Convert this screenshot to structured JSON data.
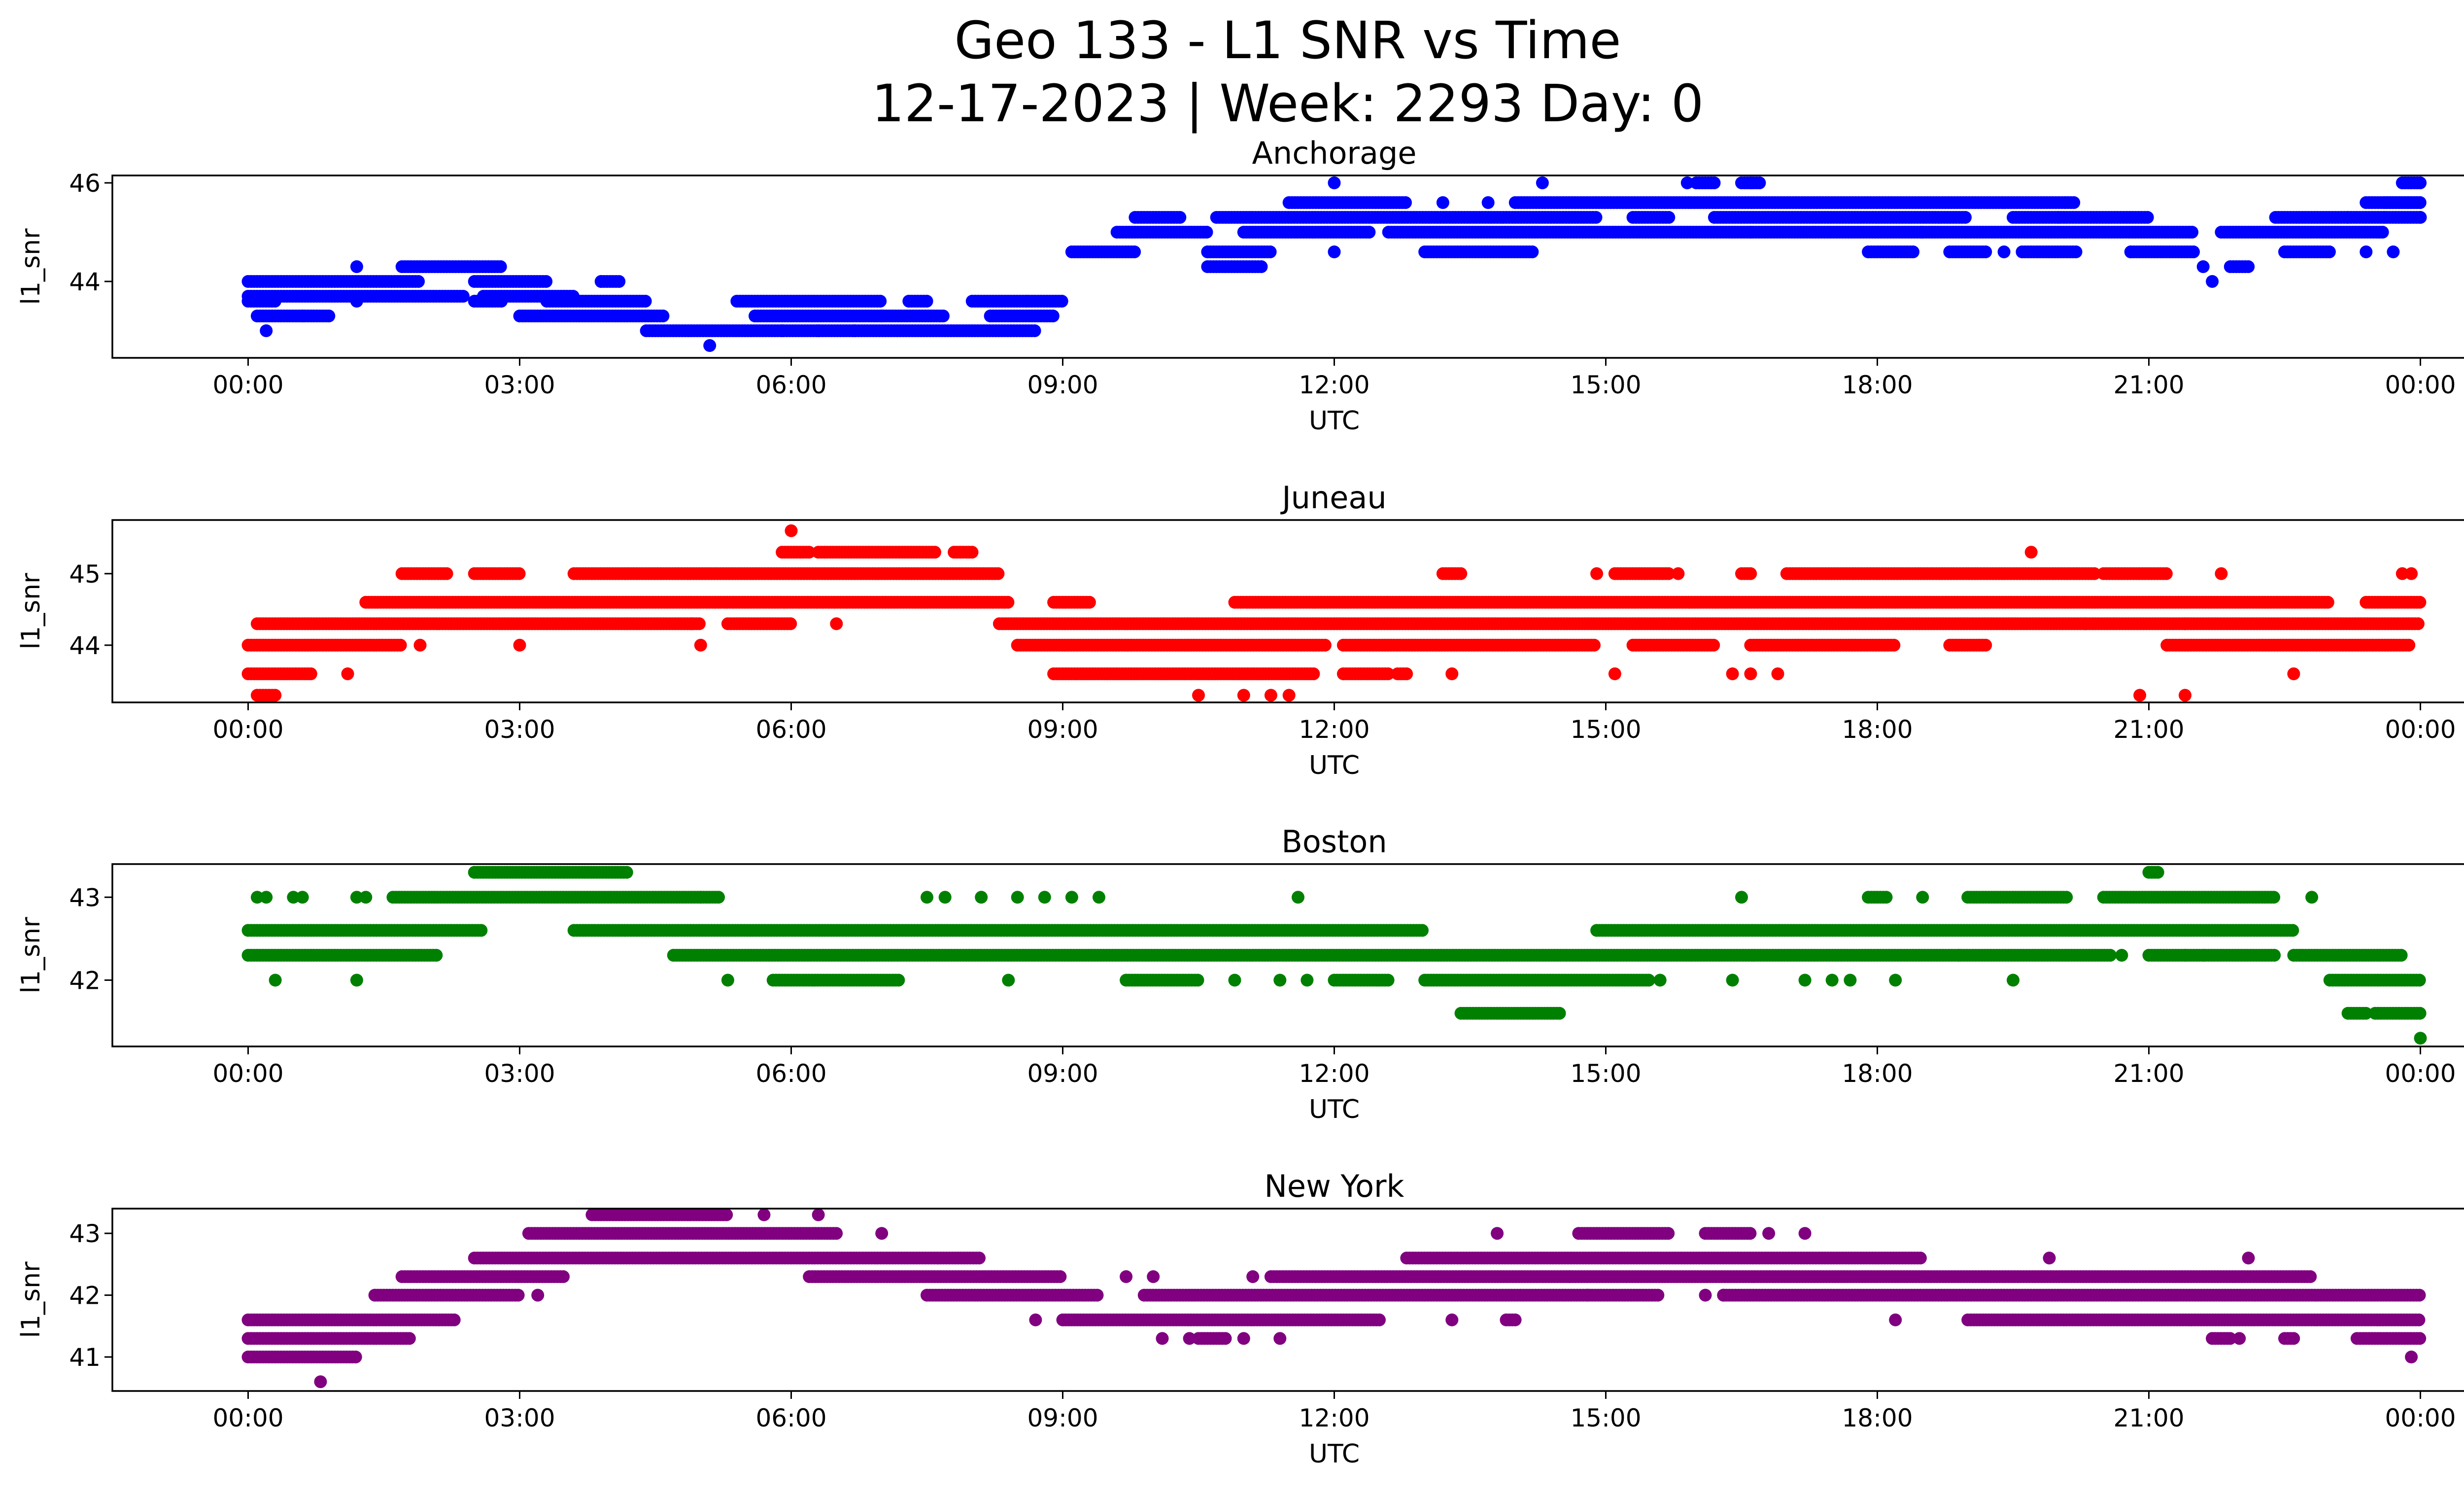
{
  "title_line1": "Geo 133 - L1 SNR vs Time",
  "title_line2": "12-17-2023 | Week: 2293 Day: 0",
  "chart_data": [
    {
      "type": "scatter",
      "title": "Anchorage",
      "xlabel": "UTC",
      "ylabel": "l1_snr",
      "color": "#0000ff",
      "xlim_hours": [
        -1.5,
        25.5
      ],
      "ylim": [
        42.45,
        46.15
      ],
      "yticks": [
        44,
        46
      ],
      "xticks": [
        "00:00",
        "03:00",
        "06:00",
        "09:00",
        "12:00",
        "15:00",
        "18:00",
        "21:00",
        "00:00"
      ],
      "series": [
        {
          "y": 44.0,
          "ranges": [
            [
              0,
              1.9
            ],
            [
              2.5,
              3.3
            ],
            [
              3.9,
              4.1
            ]
          ]
        },
        {
          "y": 43.7,
          "ranges": [
            [
              0,
              2.4
            ],
            [
              2.6,
              3.6
            ]
          ]
        },
        {
          "y": 43.3,
          "ranges": [
            [
              0.1,
              0.9
            ],
            [
              3.0,
              4.6
            ],
            [
              5.6,
              7.7
            ],
            [
              8.2,
              8.9
            ]
          ]
        },
        {
          "y": 43.6,
          "ranges": [
            [
              0,
              0.3
            ],
            [
              2.5,
              2.8
            ],
            [
              3.3,
              4.4
            ],
            [
              5.4,
              7.0
            ],
            [
              7.3,
              7.5
            ],
            [
              8.0,
              9.0
            ]
          ]
        },
        {
          "y": 43.0,
          "ranges": [
            [
              4.4,
              8.7
            ]
          ]
        },
        {
          "y": 44.3,
          "ranges": [
            [
              1.7,
              2.8
            ]
          ]
        },
        {
          "y": 44.6,
          "ranges": [
            [
              9.1,
              9.8
            ]
          ]
        },
        {
          "y": 45.0,
          "ranges": [
            [
              9.6,
              10.6
            ],
            [
              11.0,
              12.4
            ],
            [
              12.6,
              21.5
            ],
            [
              21.8,
              23.6
            ]
          ]
        },
        {
          "y": 45.3,
          "ranges": [
            [
              9.8,
              10.3
            ],
            [
              10.7,
              14.9
            ],
            [
              15.3,
              15.7
            ],
            [
              16.2,
              19.0
            ],
            [
              19.5,
              21.0
            ],
            [
              22.4,
              23.2
            ]
          ]
        },
        {
          "y": 45.6,
          "ranges": [
            [
              11.5,
              12.8
            ],
            [
              14.0,
              20.2
            ],
            [
              23.4,
              24.0
            ]
          ]
        },
        {
          "y": 44.6,
          "ranges": [
            [
              10.6,
              11.3
            ],
            [
              13.0,
              14.2
            ],
            [
              17.9,
              18.4
            ],
            [
              18.8,
              19.2
            ],
            [
              19.6,
              20.2
            ],
            [
              20.8,
              21.5
            ],
            [
              22.5,
              23.0
            ]
          ]
        },
        {
          "y": 44.3,
          "ranges": [
            [
              10.6,
              11.2
            ],
            [
              21.9,
              22.1
            ]
          ]
        },
        {
          "y": 46.0,
          "ranges": [
            [
              16.0,
              16.2
            ],
            [
              16.5,
              16.7
            ],
            [
              23.8,
              24.0
            ]
          ]
        },
        {
          "y": 45.6,
          "ranges": [
            [
              23.6,
              24.0
            ]
          ]
        },
        {
          "y": 45.3,
          "ranges": [
            [
              23.2,
              24.0
            ]
          ]
        }
      ],
      "points": [
        [
          5.1,
          42.7
        ],
        [
          0.2,
          43.0
        ],
        [
          12.0,
          46.0
        ],
        [
          12.0,
          44.6
        ],
        [
          15.9,
          46.0
        ],
        [
          16.6,
          46.0
        ],
        [
          16.6,
          45.0
        ],
        [
          20.0,
          45.3
        ],
        [
          20.8,
          44.6
        ],
        [
          21.7,
          44.0
        ],
        [
          21.6,
          44.3
        ],
        [
          24.0,
          45.3
        ],
        [
          23.6,
          45.3
        ],
        [
          23.4,
          44.6
        ],
        [
          23.7,
          44.6
        ],
        [
          18.5,
          45.0
        ],
        [
          19.4,
          44.6
        ],
        [
          13.2,
          45.6
        ],
        [
          13.7,
          45.6
        ],
        [
          14.3,
          46.0
        ],
        [
          1.2,
          44.3
        ],
        [
          1.2,
          43.6
        ],
        [
          3.9,
          44.0
        ],
        [
          0.6,
          43.3
        ],
        [
          6.3,
          43.0
        ],
        [
          6.7,
          43.0
        ],
        [
          5.9,
          43.0
        ],
        [
          7.0,
          43.3
        ],
        [
          8.6,
          43.6
        ]
      ]
    },
    {
      "type": "scatter",
      "title": "Juneau",
      "xlabel": "UTC",
      "ylabel": "l1_snr",
      "color": "#ff0000",
      "xlim_hours": [
        -1.5,
        25.5
      ],
      "ylim": [
        43.2,
        45.75
      ],
      "yticks": [
        44,
        45
      ],
      "xticks": [
        "00:00",
        "03:00",
        "06:00",
        "09:00",
        "12:00",
        "15:00",
        "18:00",
        "21:00",
        "00:00"
      ],
      "series": [
        {
          "y": 44.0,
          "ranges": [
            [
              0,
              1.7
            ],
            [
              8.5,
              11.9
            ],
            [
              12.1,
              14.9
            ],
            [
              15.3,
              16.2
            ],
            [
              16.6,
              18.2
            ],
            [
              18.8,
              19.2
            ],
            [
              21.2,
              23.9
            ]
          ]
        },
        {
          "y": 44.3,
          "ranges": [
            [
              0.1,
              5.0
            ],
            [
              5.3,
              6.0
            ],
            [
              8.3,
              24.0
            ]
          ]
        },
        {
          "y": 44.6,
          "ranges": [
            [
              1.3,
              8.4
            ],
            [
              8.9,
              9.3
            ],
            [
              10.9,
              23.0
            ],
            [
              23.4,
              24.0
            ]
          ]
        },
        {
          "y": 45.0,
          "ranges": [
            [
              1.7,
              2.2
            ],
            [
              2.5,
              3.0
            ],
            [
              3.6,
              8.3
            ],
            [
              13.2,
              13.4
            ],
            [
              15.1,
              15.7
            ],
            [
              16.5,
              16.6
            ],
            [
              17.0,
              20.4
            ],
            [
              20.5,
              21.2
            ]
          ]
        },
        {
          "y": 45.3,
          "ranges": [
            [
              5.9,
              6.2
            ],
            [
              6.3,
              7.6
            ],
            [
              7.8,
              8.0
            ]
          ]
        },
        {
          "y": 43.6,
          "ranges": [
            [
              0,
              0.7
            ],
            [
              8.9,
              11.8
            ],
            [
              12.1,
              12.6
            ],
            [
              12.7,
              12.8
            ]
          ]
        },
        {
          "y": 43.3,
          "ranges": [
            [
              0.1,
              0.3
            ]
          ]
        }
      ],
      "points": [
        [
          6.0,
          45.6
        ],
        [
          1.1,
          43.6
        ],
        [
          1.9,
          44.0
        ],
        [
          3.0,
          44.0
        ],
        [
          5.0,
          44.0
        ],
        [
          4.9,
          44.3
        ],
        [
          6.5,
          44.3
        ],
        [
          10.5,
          43.3
        ],
        [
          11.0,
          43.3
        ],
        [
          11.3,
          43.3
        ],
        [
          11.5,
          43.3
        ],
        [
          13.3,
          43.6
        ],
        [
          15.1,
          43.6
        ],
        [
          16.4,
          43.6
        ],
        [
          16.6,
          43.6
        ],
        [
          16.9,
          43.6
        ],
        [
          19.7,
          45.3
        ],
        [
          20.9,
          43.3
        ],
        [
          21.4,
          43.3
        ],
        [
          22.6,
          43.6
        ],
        [
          23.8,
          45.0
        ],
        [
          23.9,
          45.0
        ],
        [
          15.8,
          45.0
        ],
        [
          14.9,
          45.0
        ],
        [
          21.8,
          45.0
        ],
        [
          21.4,
          44.3
        ],
        [
          20.3,
          44.3
        ]
      ]
    },
    {
      "type": "scatter",
      "title": "Boston",
      "xlabel": "UTC",
      "ylabel": "l1_snr",
      "color": "#008000",
      "xlim_hours": [
        -1.5,
        25.5
      ],
      "ylim": [
        41.2,
        43.4
      ],
      "yticks": [
        42,
        43
      ],
      "xticks": [
        "00:00",
        "03:00",
        "06:00",
        "09:00",
        "12:00",
        "15:00",
        "18:00",
        "21:00",
        "00:00"
      ],
      "series": [
        {
          "y": 42.6,
          "ranges": [
            [
              0,
              2.6
            ],
            [
              3.6,
              13.0
            ],
            [
              14.9,
              22.6
            ]
          ]
        },
        {
          "y": 42.3,
          "ranges": [
            [
              0,
              2.1
            ],
            [
              4.7,
              20.6
            ],
            [
              21.0,
              22.4
            ],
            [
              22.6,
              23.8
            ]
          ]
        },
        {
          "y": 43.0,
          "ranges": [
            [
              1.6,
              5.2
            ],
            [
              17.9,
              18.1
            ],
            [
              19.0,
              20.1
            ],
            [
              20.5,
              22.4
            ]
          ]
        },
        {
          "y": 43.3,
          "ranges": [
            [
              2.5,
              4.2
            ],
            [
              21.0,
              21.1
            ]
          ]
        },
        {
          "y": 42.0,
          "ranges": [
            [
              5.8,
              7.2
            ],
            [
              9.7,
              10.5
            ],
            [
              12.0,
              12.6
            ],
            [
              13.0,
              15.5
            ],
            [
              23.0,
              24.0
            ]
          ]
        },
        {
          "y": 41.6,
          "ranges": [
            [
              13.4,
              14.5
            ],
            [
              23.2,
              23.4
            ],
            [
              23.5,
              24.0
            ]
          ]
        }
      ],
      "points": [
        [
          0.1,
          43.0
        ],
        [
          0.2,
          43.0
        ],
        [
          0.5,
          43.0
        ],
        [
          0.6,
          43.0
        ],
        [
          1.2,
          43.0
        ],
        [
          1.3,
          43.0
        ],
        [
          0.3,
          42.0
        ],
        [
          1.2,
          42.0
        ],
        [
          5.3,
          42.0
        ],
        [
          5.0,
          43.0
        ],
        [
          7.5,
          43.0
        ],
        [
          7.7,
          43.0
        ],
        [
          8.1,
          43.0
        ],
        [
          8.5,
          43.0
        ],
        [
          8.8,
          43.0
        ],
        [
          9.1,
          43.0
        ],
        [
          9.4,
          43.0
        ],
        [
          11.6,
          43.0
        ],
        [
          10.9,
          42.0
        ],
        [
          11.4,
          42.0
        ],
        [
          11.7,
          42.0
        ],
        [
          8.4,
          42.0
        ],
        [
          16.5,
          43.0
        ],
        [
          18.5,
          43.0
        ],
        [
          16.4,
          42.0
        ],
        [
          17.2,
          42.0
        ],
        [
          17.5,
          42.0
        ],
        [
          17.7,
          42.0
        ],
        [
          18.2,
          42.0
        ],
        [
          19.5,
          42.0
        ],
        [
          20.7,
          42.3
        ],
        [
          21.4,
          42.3
        ],
        [
          21.6,
          42.3
        ],
        [
          22.8,
          43.0
        ],
        [
          24.0,
          41.3
        ],
        [
          18.9,
          42.3
        ],
        [
          15.6,
          42.0
        ]
      ]
    },
    {
      "type": "scatter",
      "title": "New York",
      "xlabel": "UTC",
      "ylabel": "l1_snr",
      "color": "#800080",
      "xlim_hours": [
        -1.5,
        25.5
      ],
      "ylim": [
        40.45,
        43.4
      ],
      "yticks": [
        41,
        42,
        43
      ],
      "xticks": [
        "00:00",
        "03:00",
        "06:00",
        "09:00",
        "12:00",
        "15:00",
        "18:00",
        "21:00",
        "00:00"
      ],
      "series": [
        {
          "y": 41.0,
          "ranges": [
            [
              0,
              1.2
            ]
          ]
        },
        {
          "y": 41.3,
          "ranges": [
            [
              0,
              1.8
            ],
            [
              10.5,
              10.8
            ],
            [
              21.7,
              21.9
            ],
            [
              22.5,
              22.6
            ],
            [
              23.3,
              24.0
            ]
          ]
        },
        {
          "y": 41.6,
          "ranges": [
            [
              0,
              2.3
            ],
            [
              9.0,
              12.5
            ],
            [
              13.9,
              14.0
            ],
            [
              19.0,
              24.0
            ]
          ]
        },
        {
          "y": 42.0,
          "ranges": [
            [
              1.4,
              3.0
            ],
            [
              7.5,
              9.4
            ],
            [
              9.9,
              15.6
            ],
            [
              16.3,
              24.0
            ]
          ]
        },
        {
          "y": 42.3,
          "ranges": [
            [
              1.7,
              3.5
            ],
            [
              6.2,
              9.0
            ],
            [
              11.3,
              22.8
            ]
          ]
        },
        {
          "y": 42.6,
          "ranges": [
            [
              2.5,
              8.1
            ],
            [
              12.8,
              18.5
            ]
          ]
        },
        {
          "y": 43.0,
          "ranges": [
            [
              3.1,
              6.5
            ],
            [
              14.7,
              15.7
            ],
            [
              16.1,
              16.6
            ]
          ]
        },
        {
          "y": 43.3,
          "ranges": [
            [
              3.8,
              5.3
            ]
          ]
        }
      ],
      "points": [
        [
          0.8,
          40.6
        ],
        [
          3.2,
          42.0
        ],
        [
          5.7,
          43.3
        ],
        [
          6.3,
          43.3
        ],
        [
          7.0,
          43.0
        ],
        [
          8.7,
          41.6
        ],
        [
          9.7,
          42.3
        ],
        [
          10.0,
          42.3
        ],
        [
          10.1,
          41.3
        ],
        [
          10.4,
          41.3
        ],
        [
          11.0,
          41.3
        ],
        [
          11.4,
          41.3
        ],
        [
          11.1,
          42.3
        ],
        [
          13.3,
          41.6
        ],
        [
          13.8,
          43.0
        ],
        [
          14.6,
          42.3
        ],
        [
          14.8,
          42.0
        ],
        [
          16.1,
          42.0
        ],
        [
          16.3,
          42.0
        ],
        [
          16.8,
          43.0
        ],
        [
          17.2,
          43.0
        ],
        [
          18.2,
          41.6
        ],
        [
          19.9,
          42.6
        ],
        [
          22.1,
          42.6
        ],
        [
          23.9,
          41.0
        ],
        [
          22.0,
          41.3
        ]
      ]
    }
  ]
}
